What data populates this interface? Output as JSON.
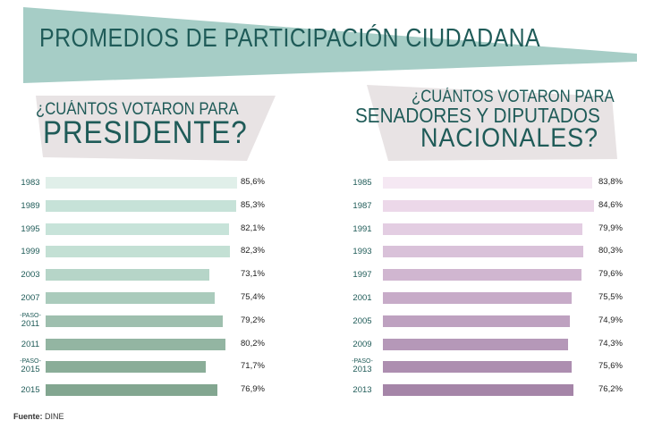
{
  "title": "PROMEDIOS DE PARTICIPACIÓN CIUDADANA",
  "source": {
    "label": "Fuente:",
    "value": "DINE"
  },
  "colors": {
    "banner": "#a6cdc6",
    "subtitle_bg": "#e8e3e4",
    "title_text": "#1f5b58"
  },
  "chart_data": [
    {
      "type": "bar",
      "orientation": "horizontal",
      "title_line1": "¿CUÁNTOS VOTARON PARA",
      "title_line2": "PRESIDENTE?",
      "categories": [
        "1983",
        "1989",
        "1995",
        "1999",
        "2003",
        "2007",
        "-PASO- 2011",
        "2011",
        "-PASO- 2015",
        "2015"
      ],
      "values": [
        85.6,
        85.3,
        82.1,
        82.3,
        73.1,
        75.4,
        79.2,
        80.2,
        71.7,
        76.9
      ],
      "value_labels": [
        "85,6%",
        "85,3%",
        "82,1%",
        "82,3%",
        "73,1%",
        "75,4%",
        "79,2%",
        "80,2%",
        "71,7%",
        "76,9%"
      ],
      "colors": [
        "#e0efe9",
        "#c6e2d8",
        "#c7e3d9",
        "#c3e0d4",
        "#b6d5c8",
        "#aacbbc",
        "#9ebfae",
        "#93b5a2",
        "#8aad98",
        "#82a690"
      ]
    },
    {
      "type": "bar",
      "orientation": "horizontal",
      "title_line1": "¿CUÁNTOS VOTARON PARA",
      "title_line2": "SENADORES Y DIPUTADOS",
      "title_line3": "NACIONALES?",
      "categories": [
        "1985",
        "1987",
        "1991",
        "1993",
        "1997",
        "2001",
        "2005",
        "2009",
        "-PASO- 2013",
        "2013"
      ],
      "values": [
        83.8,
        84.6,
        79.9,
        80.3,
        79.6,
        75.5,
        74.9,
        74.3,
        75.6,
        76.2
      ],
      "value_labels": [
        "83,8%",
        "84,6%",
        "79,9%",
        "80,3%",
        "79,6%",
        "75,5%",
        "74,9%",
        "74,3%",
        "75,6%",
        "76,2%"
      ],
      "colors": [
        "#f5e8f3",
        "#ecd8e9",
        "#e3cde2",
        "#d9c1d9",
        "#d0b6d0",
        "#c7abc8",
        "#bea1c0",
        "#b598b8",
        "#ad8eb0",
        "#a585a8"
      ]
    }
  ]
}
